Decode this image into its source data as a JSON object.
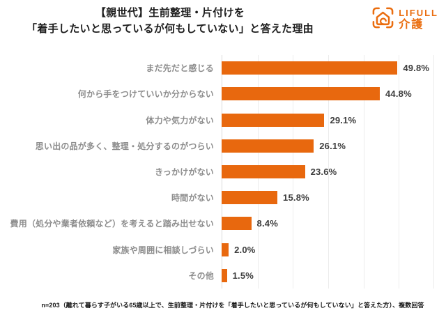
{
  "header": {
    "title_line1": "【親世代】生前整理・片付けを",
    "title_line2": "「着手したいと思っているが何もしていない」と答えた理由",
    "logo": {
      "brand": "LIFULL",
      "service": "介護",
      "color": "#ea6d0f"
    }
  },
  "chart_data": {
    "type": "bar",
    "orientation": "horizontal",
    "title": "【親世代】生前整理・片付けを「着手したいと思っているが何もしていない」と答えた理由",
    "categories": [
      "まだ先だと感じる",
      "何から手をつけていいか分からない",
      "体力や気力がない",
      "思い出の品が多く、整理・処分するのがつらい",
      "きっかけがない",
      "時間がない",
      "費用（処分や業者依頼など）を考えると踏み出せない",
      "家族や周囲に相談しづらい",
      "その他"
    ],
    "values": [
      49.8,
      44.8,
      29.1,
      26.1,
      23.6,
      15.8,
      8.4,
      2.0,
      1.5
    ],
    "value_labels": [
      "49.8%",
      "44.8%",
      "29.1%",
      "26.1%",
      "23.6%",
      "15.8%",
      "8.4%",
      "2.0%",
      "1.5%"
    ],
    "xlabel": "",
    "ylabel": "",
    "xlim": [
      0,
      60
    ],
    "gridline_interval": 10,
    "grid": true,
    "legend": false,
    "bar_color": "#e8680e",
    "category_label_color": "#8d8d8d",
    "value_label_color": "#3d3d3d"
  },
  "footer": {
    "note": "n=203（離れて暮らす子がいる65歳以上で、生前整理・片付けを「着手したいと思っているが何もしていない」と答えた方）、複数回答"
  }
}
